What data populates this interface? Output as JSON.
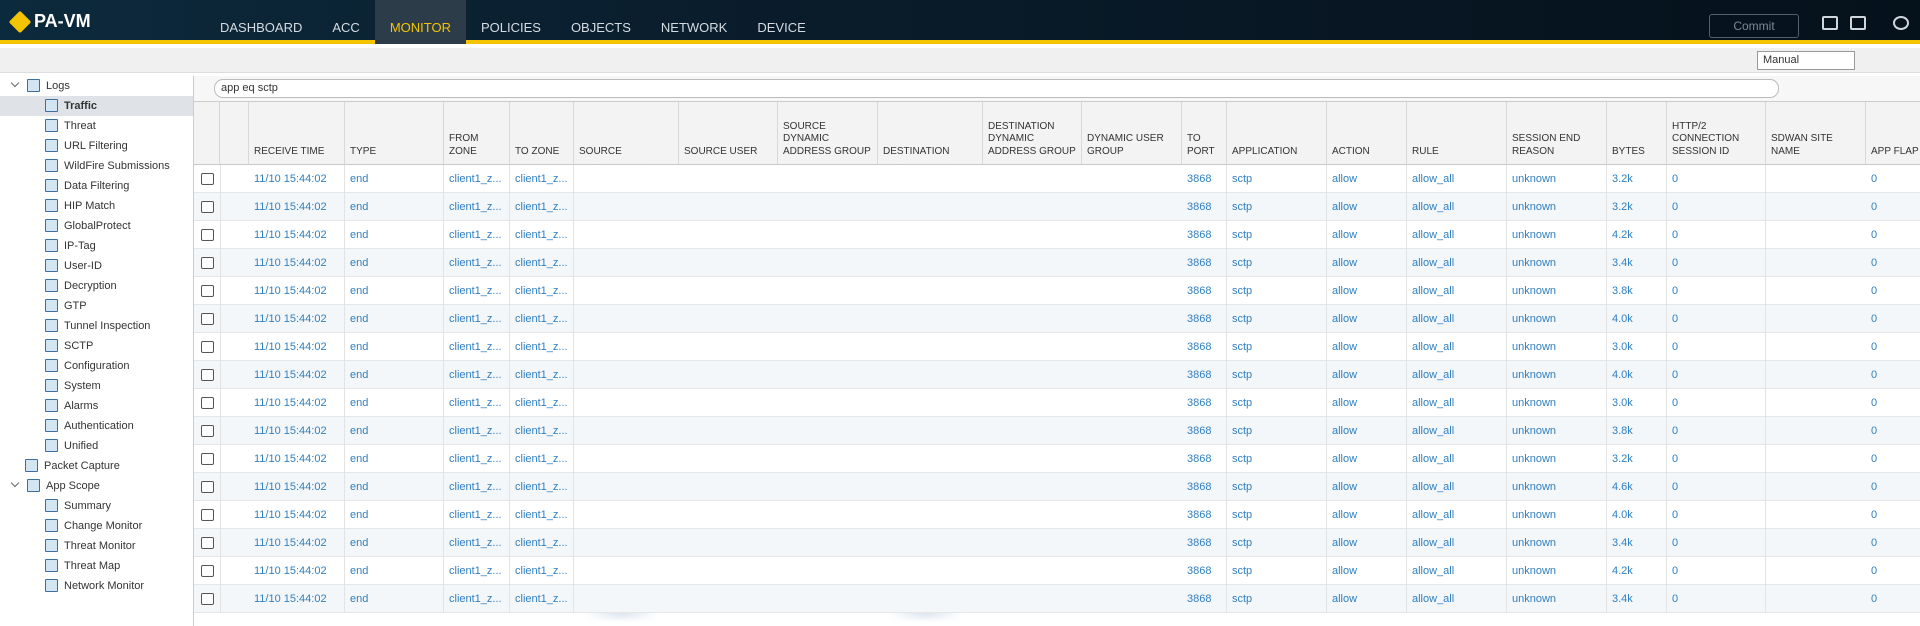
{
  "header": {
    "logo": "PA-VM",
    "tabs": [
      "DASHBOARD",
      "ACC",
      "MONITOR",
      "POLICIES",
      "OBJECTS",
      "NETWORK",
      "DEVICE"
    ],
    "active_tab": 2,
    "commit": "Commit"
  },
  "toolbar": {
    "refresh_mode": "Manual"
  },
  "sidebar": {
    "items": [
      {
        "label": "Logs",
        "level": 0,
        "expanded": true
      },
      {
        "label": "Traffic",
        "level": 1,
        "selected": true
      },
      {
        "label": "Threat",
        "level": 1
      },
      {
        "label": "URL Filtering",
        "level": 1
      },
      {
        "label": "WildFire Submissions",
        "level": 1
      },
      {
        "label": "Data Filtering",
        "level": 1
      },
      {
        "label": "HIP Match",
        "level": 1
      },
      {
        "label": "GlobalProtect",
        "level": 1
      },
      {
        "label": "IP-Tag",
        "level": 1
      },
      {
        "label": "User-ID",
        "level": 1
      },
      {
        "label": "Decryption",
        "level": 1
      },
      {
        "label": "GTP",
        "level": 1
      },
      {
        "label": "Tunnel Inspection",
        "level": 1
      },
      {
        "label": "SCTP",
        "level": 1
      },
      {
        "label": "Configuration",
        "level": 1
      },
      {
        "label": "System",
        "level": 1
      },
      {
        "label": "Alarms",
        "level": 1
      },
      {
        "label": "Authentication",
        "level": 1
      },
      {
        "label": "Unified",
        "level": 1
      },
      {
        "label": "Packet Capture",
        "level": 0
      },
      {
        "label": "App Scope",
        "level": 0,
        "expanded": true
      },
      {
        "label": "Summary",
        "level": 1
      },
      {
        "label": "Change Monitor",
        "level": 1
      },
      {
        "label": "Threat Monitor",
        "level": 1
      },
      {
        "label": "Threat Map",
        "level": 1
      },
      {
        "label": "Network Monitor",
        "level": 1
      }
    ]
  },
  "filter": {
    "query": "app eq sctp"
  },
  "table": {
    "columns": [
      "RECEIVE TIME",
      "TYPE",
      "FROM ZONE",
      "TO ZONE",
      "SOURCE",
      "SOURCE USER",
      "SOURCE DYNAMIC ADDRESS GROUP",
      "DESTINATION",
      "DESTINATION DYNAMIC ADDRESS GROUP",
      "DYNAMIC USER GROUP",
      "TO PORT",
      "APPLICATION",
      "ACTION",
      "RULE",
      "SESSION END REASON",
      "BYTES",
      "HTTP/2 CONNECTION SESSION ID",
      "SDWAN SITE NAME",
      "APP FLAP COUNT"
    ],
    "rows": [
      [
        "11/10 15:44:02",
        "end",
        "client1_z...",
        "client1_z...",
        null,
        null,
        null,
        null,
        null,
        null,
        "3868",
        "sctp",
        "allow",
        "allow_all",
        "unknown",
        "3.2k",
        "0",
        null,
        "0"
      ],
      [
        "11/10 15:44:02",
        "end",
        "client1_z...",
        "client1_z...",
        null,
        null,
        null,
        null,
        null,
        null,
        "3868",
        "sctp",
        "allow",
        "allow_all",
        "unknown",
        "3.2k",
        "0",
        null,
        "0"
      ],
      [
        "11/10 15:44:02",
        "end",
        "client1_z...",
        "client1_z...",
        null,
        null,
        null,
        null,
        null,
        null,
        "3868",
        "sctp",
        "allow",
        "allow_all",
        "unknown",
        "4.2k",
        "0",
        null,
        "0"
      ],
      [
        "11/10 15:44:02",
        "end",
        "client1_z...",
        "client1_z...",
        null,
        null,
        null,
        null,
        null,
        null,
        "3868",
        "sctp",
        "allow",
        "allow_all",
        "unknown",
        "3.4k",
        "0",
        null,
        "0"
      ],
      [
        "11/10 15:44:02",
        "end",
        "client1_z...",
        "client1_z...",
        null,
        null,
        null,
        null,
        null,
        null,
        "3868",
        "sctp",
        "allow",
        "allow_all",
        "unknown",
        "3.8k",
        "0",
        null,
        "0"
      ],
      [
        "11/10 15:44:02",
        "end",
        "client1_z...",
        "client1_z...",
        null,
        null,
        null,
        null,
        null,
        null,
        "3868",
        "sctp",
        "allow",
        "allow_all",
        "unknown",
        "4.0k",
        "0",
        null,
        "0"
      ],
      [
        "11/10 15:44:02",
        "end",
        "client1_z...",
        "client1_z...",
        null,
        null,
        null,
        null,
        null,
        null,
        "3868",
        "sctp",
        "allow",
        "allow_all",
        "unknown",
        "3.0k",
        "0",
        null,
        "0"
      ],
      [
        "11/10 15:44:02",
        "end",
        "client1_z...",
        "client1_z...",
        null,
        null,
        null,
        null,
        null,
        null,
        "3868",
        "sctp",
        "allow",
        "allow_all",
        "unknown",
        "4.0k",
        "0",
        null,
        "0"
      ],
      [
        "11/10 15:44:02",
        "end",
        "client1_z...",
        "client1_z...",
        null,
        null,
        null,
        null,
        null,
        null,
        "3868",
        "sctp",
        "allow",
        "allow_all",
        "unknown",
        "3.0k",
        "0",
        null,
        "0"
      ],
      [
        "11/10 15:44:02",
        "end",
        "client1_z...",
        "client1_z...",
        null,
        null,
        null,
        null,
        null,
        null,
        "3868",
        "sctp",
        "allow",
        "allow_all",
        "unknown",
        "3.8k",
        "0",
        null,
        "0"
      ],
      [
        "11/10 15:44:02",
        "end",
        "client1_z...",
        "client1_z...",
        null,
        null,
        null,
        null,
        null,
        null,
        "3868",
        "sctp",
        "allow",
        "allow_all",
        "unknown",
        "3.2k",
        "0",
        null,
        "0"
      ],
      [
        "11/10 15:44:02",
        "end",
        "client1_z...",
        "client1_z...",
        null,
        null,
        null,
        null,
        null,
        null,
        "3868",
        "sctp",
        "allow",
        "allow_all",
        "unknown",
        "4.6k",
        "0",
        null,
        "0"
      ],
      [
        "11/10 15:44:02",
        "end",
        "client1_z...",
        "client1_z...",
        null,
        null,
        null,
        null,
        null,
        null,
        "3868",
        "sctp",
        "allow",
        "allow_all",
        "unknown",
        "4.0k",
        "0",
        null,
        "0"
      ],
      [
        "11/10 15:44:02",
        "end",
        "client1_z...",
        "client1_z...",
        null,
        null,
        null,
        null,
        null,
        null,
        "3868",
        "sctp",
        "allow",
        "allow_all",
        "unknown",
        "3.4k",
        "0",
        null,
        "0"
      ],
      [
        "11/10 15:44:02",
        "end",
        "client1_z...",
        "client1_z...",
        null,
        null,
        null,
        null,
        null,
        null,
        "3868",
        "sctp",
        "allow",
        "allow_all",
        "unknown",
        "4.2k",
        "0",
        null,
        "0"
      ],
      [
        "11/10 15:44:02",
        "end",
        "client1_z...",
        "client1_z...",
        null,
        null,
        null,
        null,
        null,
        null,
        "3868",
        "sctp",
        "allow",
        "allow_all",
        "unknown",
        "3.4k",
        "0",
        null,
        "0"
      ]
    ]
  }
}
